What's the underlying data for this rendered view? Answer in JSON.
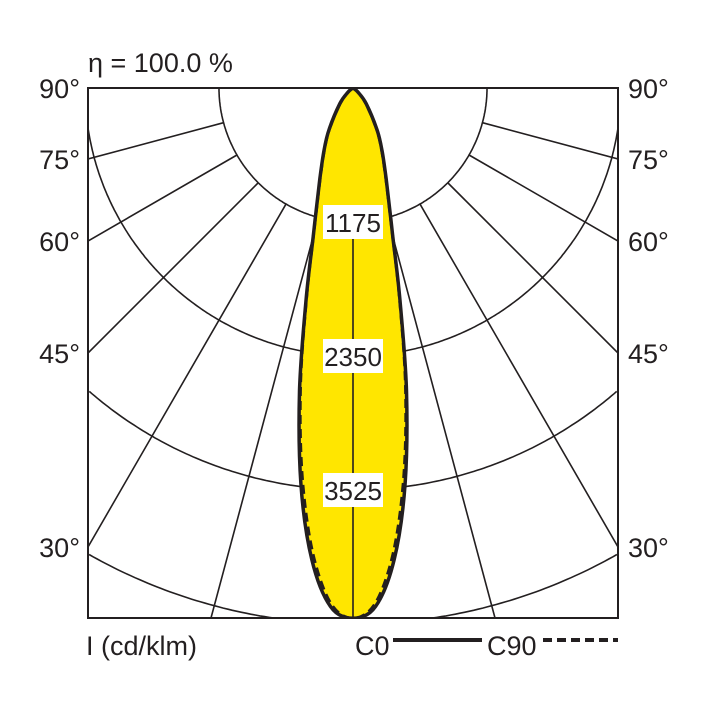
{
  "chart_data": {
    "type": "polar",
    "title": "η = 100.0 %",
    "unit_label": "I (cd/klm)",
    "rings": [
      1175,
      2350,
      3525,
      4700
    ],
    "ring_labels": [
      "1175",
      "2350",
      "3525"
    ],
    "angle_labels": [
      "90°",
      "75°",
      "60°",
      "45°",
      "30°"
    ],
    "angle_values": [
      90,
      75,
      60,
      45,
      30
    ],
    "radial_lines_deg": [
      15,
      30,
      45,
      60,
      75
    ],
    "fill_color": "#ffe600",
    "series": [
      {
        "name": "C0",
        "style": "solid",
        "angles": [
          0,
          2.5,
          5,
          7.5,
          10,
          12.5,
          15,
          20,
          25,
          30,
          40,
          50,
          60,
          90
        ],
        "values": [
          4650,
          4550,
          4150,
          3500,
          2700,
          1900,
          1350,
          850,
          600,
          420,
          180,
          60,
          10,
          0
        ]
      },
      {
        "name": "C90",
        "style": "dashed",
        "angles": [
          0,
          2.5,
          5,
          7.5,
          10,
          12.5,
          15,
          20,
          25,
          30,
          40,
          50,
          60,
          90
        ],
        "values": [
          4650,
          4520,
          4080,
          3420,
          2650,
          1880,
          1340,
          840,
          590,
          410,
          175,
          58,
          10,
          0
        ]
      }
    ]
  }
}
